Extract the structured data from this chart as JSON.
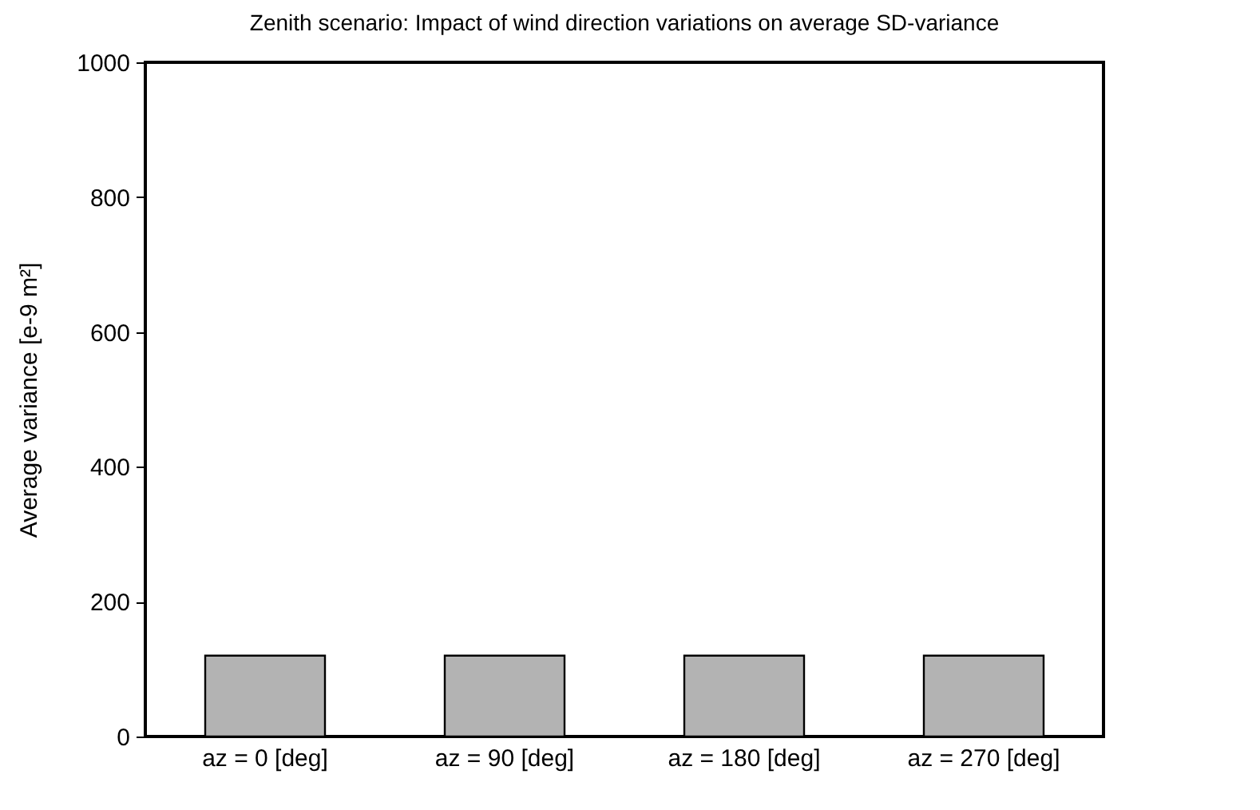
{
  "chart_data": {
    "type": "bar",
    "title": "Zenith scenario: Impact of wind direction variations on average SD-variance",
    "ylabel": "Average variance [e-9 m²]",
    "categories": [
      "az = 0 [deg]",
      "az = 90 [deg]",
      "az = 180 [deg]",
      "az = 270 [deg]"
    ],
    "values": [
      120,
      120,
      120,
      120
    ],
    "color": "#b3b3b3",
    "ylim": [
      0,
      1000
    ],
    "yticks": [
      0,
      200,
      400,
      600,
      800,
      1000
    ],
    "grid": false
  }
}
